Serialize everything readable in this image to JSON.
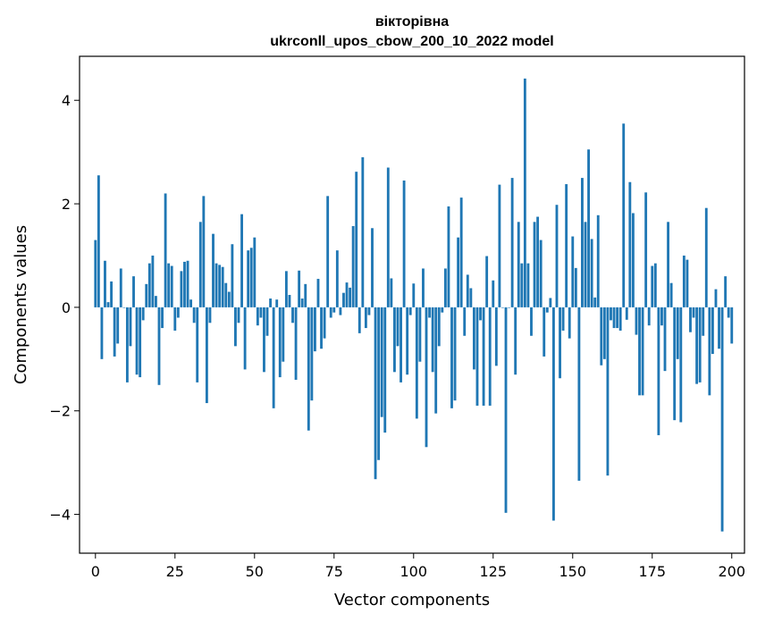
{
  "chart_data": {
    "type": "bar",
    "title": [
      "вікторівна",
      "ukrconll_upos_cbow_200_10_2022 model"
    ],
    "xlabel": "Vector components",
    "ylabel": "Components values",
    "xlim": [
      -5,
      204
    ],
    "ylim": [
      -4.75,
      4.85
    ],
    "xticks": [
      0,
      25,
      50,
      75,
      100,
      125,
      150,
      175,
      200
    ],
    "yticks": [
      -4,
      -2,
      0,
      2,
      4
    ],
    "xtick_labels": [
      "0",
      "25",
      "50",
      "75",
      "100",
      "125",
      "150",
      "175",
      "200"
    ],
    "ytick_labels": [
      "−4",
      "−2",
      "0",
      "2",
      "4"
    ],
    "grid": false,
    "color": "#1f77b4",
    "values": [
      1.3,
      2.55,
      -1.0,
      0.9,
      0.1,
      0.5,
      -0.95,
      -0.7,
      0.75,
      0.0,
      -1.45,
      -0.75,
      0.6,
      -1.3,
      -1.35,
      -0.25,
      0.45,
      0.85,
      1.0,
      0.22,
      -1.5,
      -0.4,
      2.2,
      0.85,
      0.8,
      -0.45,
      -0.2,
      0.7,
      0.88,
      0.9,
      0.15,
      -0.3,
      -1.45,
      1.65,
      2.15,
      -1.85,
      -0.3,
      1.42,
      0.85,
      0.82,
      0.78,
      0.47,
      0.3,
      1.22,
      -0.75,
      -0.3,
      1.8,
      -1.2,
      1.1,
      1.15,
      1.35,
      -0.35,
      -0.2,
      -1.25,
      -0.55,
      0.17,
      -1.95,
      0.15,
      -1.35,
      -1.05,
      0.7,
      0.24,
      -0.3,
      -1.4,
      0.71,
      0.17,
      0.45,
      -2.38,
      -1.8,
      -0.85,
      0.55,
      -0.8,
      -0.6,
      2.15,
      -0.2,
      -0.1,
      1.1,
      -0.15,
      0.28,
      0.48,
      0.38,
      1.57,
      2.62,
      -0.5,
      2.9,
      -0.4,
      -0.15,
      1.53,
      -3.32,
      -2.95,
      -2.12,
      -2.42,
      2.7,
      0.56,
      -1.25,
      -0.75,
      -1.45,
      2.45,
      -1.3,
      -0.15,
      0.46,
      -2.15,
      -1.05,
      0.75,
      -2.7,
      -0.2,
      -1.25,
      -2.05,
      -0.75,
      -0.1,
      0.75,
      1.95,
      -1.95,
      -1.8,
      1.35,
      2.12,
      -0.55,
      0.63,
      0.37,
      -1.2,
      -1.9,
      -0.25,
      -1.9,
      0.99,
      -1.9,
      0.52,
      -1.13,
      2.37,
      0.0,
      -3.97,
      0.0,
      2.5,
      -1.3,
      1.65,
      0.85,
      4.42,
      0.85,
      -0.55,
      1.65,
      1.75,
      1.3,
      -0.95,
      -0.1,
      0.18,
      -4.12,
      1.98,
      -1.37,
      -0.45,
      2.38,
      -0.6,
      1.37,
      0.76,
      -3.35,
      2.5,
      1.65,
      3.05,
      1.32,
      0.19,
      1.78,
      -1.12,
      -1.0,
      -3.25,
      -0.25,
      -0.4,
      -0.4,
      -0.45,
      3.55,
      -0.24,
      2.42,
      1.82,
      -0.53,
      -1.7,
      -1.7,
      2.22,
      -0.35,
      0.8,
      0.85,
      -2.47,
      -0.35,
      -1.23,
      1.65,
      0.47,
      -2.18,
      -1.0,
      -2.22,
      1.0,
      0.92,
      -0.48,
      -0.2,
      -1.48,
      -1.45,
      -0.55,
      1.92,
      -1.7,
      -0.9,
      0.35,
      -0.8,
      -4.33,
      0.6,
      -0.2,
      -0.7
    ]
  }
}
